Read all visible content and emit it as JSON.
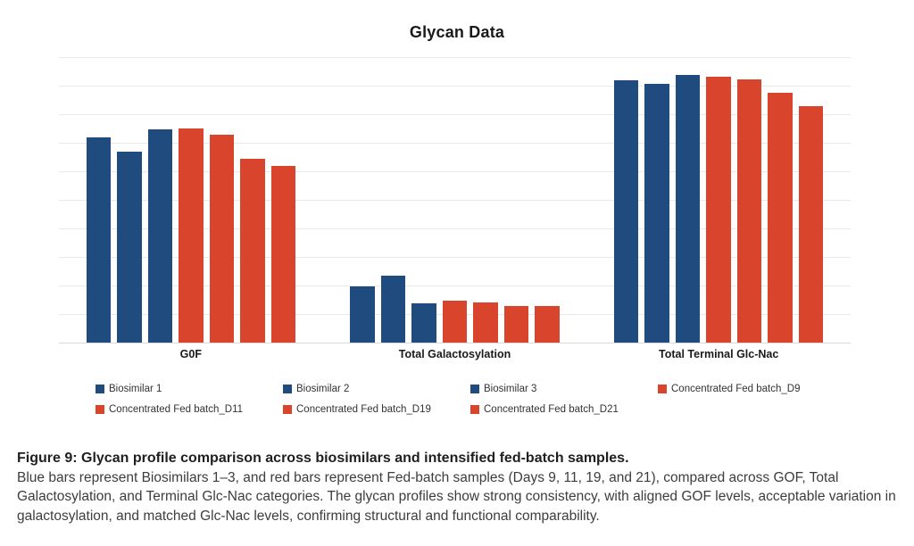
{
  "chart": {
    "title": "Glycan Data"
  },
  "chart_data": {
    "type": "bar",
    "title": "Glycan Data",
    "categories": [
      "G0F",
      "Total Galactosylation",
      "Total Terminal Glc-Nac"
    ],
    "series": [
      {
        "name": "Biosimilar 1",
        "color": "#1F4B7E",
        "values": [
          71.8,
          19.8,
          91.8
        ]
      },
      {
        "name": "Biosimilar 2",
        "color": "#1F4B7E",
        "values": [
          66.9,
          23.5,
          90.6
        ]
      },
      {
        "name": "Biosimilar 3",
        "color": "#1F4B7E",
        "values": [
          74.6,
          13.8,
          93.7
        ]
      },
      {
        "name": "Concentrated Fed batch_D9",
        "color": "#D8452C",
        "values": [
          74.9,
          14.6,
          93.0
        ]
      },
      {
        "name": "Concentrated Fed batch_D11",
        "color": "#D8452C",
        "values": [
          72.8,
          14.1,
          92.3
        ]
      },
      {
        "name": "Concentrated Fed batch_D19",
        "color": "#D8452C",
        "values": [
          64.3,
          12.7,
          87.6
        ]
      },
      {
        "name": "Concentrated Fed batch_D21",
        "color": "#D8452C",
        "values": [
          62.0,
          12.7,
          82.9
        ]
      }
    ],
    "ylim": [
      0,
      100
    ],
    "y_axis_tick_labels": "none",
    "gridlines": "horizontal",
    "gridline_interval": 10,
    "legend_position": "bottom",
    "xlabel": "",
    "ylabel": ""
  },
  "colors": {
    "biosimilar_blue": "#1F4B7E",
    "fed_batch_red": "#D8452C",
    "gridline": "#E9E9E9",
    "axis_line": "#D9D9D9"
  },
  "caption": {
    "heading": "Figure 9: Glycan profile comparison across biosimilars and intensified fed-batch samples.",
    "body": "Blue bars represent Biosimilars 1–3, and red bars represent Fed-batch samples (Days 9, 11, 19, and 21), compared across GOF, Total Galactosylation, and Terminal Glc-Nac categories. The glycan profiles show strong consistency, with aligned GOF levels, acceptable variation in galactosylation, and matched Glc-Nac levels, confirming structural and functional comparability."
  }
}
